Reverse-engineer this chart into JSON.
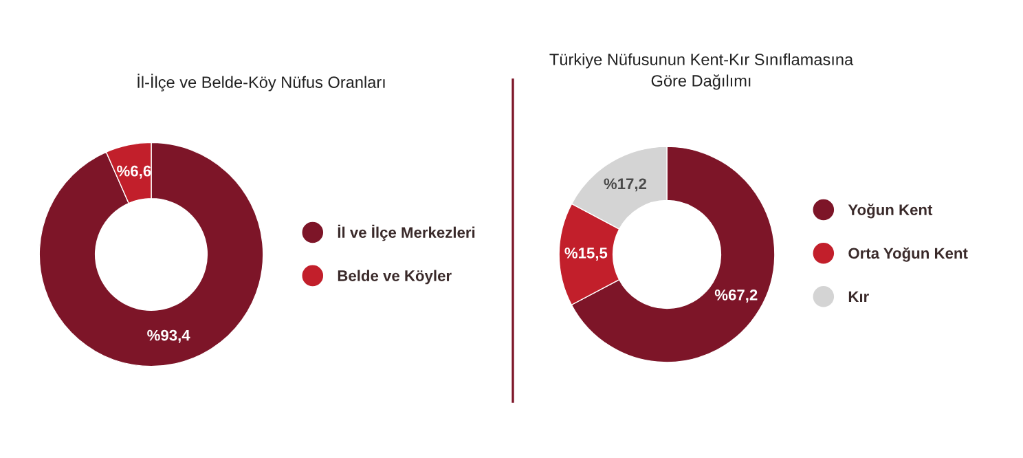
{
  "chart_data": [
    {
      "type": "donut",
      "title": "İl-İlçe ve Belde-Köy Nüfus Oranları",
      "categories": [
        "İl ve İlçe Merkezleri",
        "Belde ve Köyler"
      ],
      "values": [
        93.4,
        6.6
      ],
      "colors": [
        "#7d1528",
        "#c21f2b"
      ],
      "value_labels": [
        "%93,4",
        "%6,6"
      ],
      "legend": "right"
    },
    {
      "type": "donut",
      "title": "Türkiye Nüfusunun Kent-Kır Sınıflamasına\nGöre Dağılımı",
      "categories": [
        "Yoğun Kent",
        "Orta Yoğun Kent",
        "Kır"
      ],
      "values": [
        67.2,
        15.5,
        17.2
      ],
      "colors": [
        "#7d1528",
        "#c21f2b",
        "#d4d4d4"
      ],
      "value_labels": [
        "%67,2",
        "%15,5",
        "%17,2"
      ],
      "legend": "right"
    }
  ]
}
